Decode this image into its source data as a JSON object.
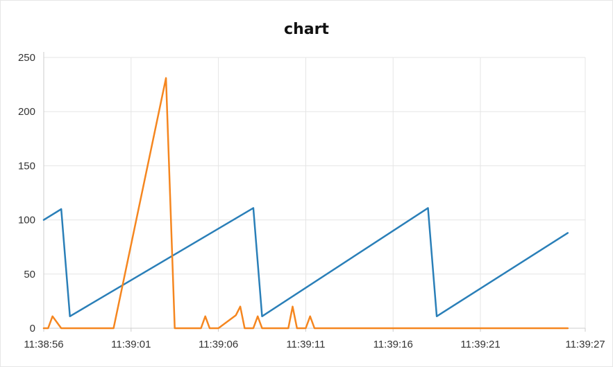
{
  "chart_data": {
    "type": "line",
    "title": "chart",
    "xlabel": "",
    "ylabel": "",
    "x_unit": "time (hh:mm:ss)",
    "xlim": [
      "11:38:56",
      "11:39:27"
    ],
    "ylim": [
      0,
      250
    ],
    "x_ticks": [
      "11:38:56",
      "11:39:01",
      "11:39:06",
      "11:39:11",
      "11:39:16",
      "11:39:21",
      "11:39:27"
    ],
    "y_ticks": [
      0,
      50,
      100,
      150,
      200,
      250
    ],
    "grid": true,
    "legend": "none",
    "series": [
      {
        "color": "#2a7fb8",
        "points": [
          [
            "11:38:56",
            100
          ],
          [
            "11:38:57",
            110
          ],
          [
            "11:38:57",
            11
          ],
          [
            "11:39:08",
            111
          ],
          [
            "11:39:08",
            11
          ],
          [
            "11:39:18",
            111
          ],
          [
            "11:39:18",
            11
          ],
          [
            "11:39:26",
            88
          ]
        ]
      },
      {
        "color": "#f5861f",
        "points": [
          [
            "11:38:56",
            0
          ],
          [
            "11:38:56",
            0
          ],
          [
            "11:38:56",
            11
          ],
          [
            "11:38:57",
            0
          ],
          [
            "11:39:00",
            0
          ],
          [
            "11:39:03",
            231
          ],
          [
            "11:39:03",
            0
          ],
          [
            "11:39:05",
            0
          ],
          [
            "11:39:05",
            11
          ],
          [
            "11:39:05",
            0
          ],
          [
            "11:39:06",
            0
          ],
          [
            "11:39:07",
            12
          ],
          [
            "11:39:07",
            20
          ],
          [
            "11:39:07",
            0
          ],
          [
            "11:39:08",
            0
          ],
          [
            "11:39:08",
            11
          ],
          [
            "11:39:08",
            0
          ],
          [
            "11:39:10",
            0
          ],
          [
            "11:39:10",
            20
          ],
          [
            "11:39:10",
            0
          ],
          [
            "11:39:11",
            0
          ],
          [
            "11:39:11",
            11
          ],
          [
            "11:39:11",
            0
          ],
          [
            "11:39:26",
            0
          ]
        ]
      }
    ]
  }
}
